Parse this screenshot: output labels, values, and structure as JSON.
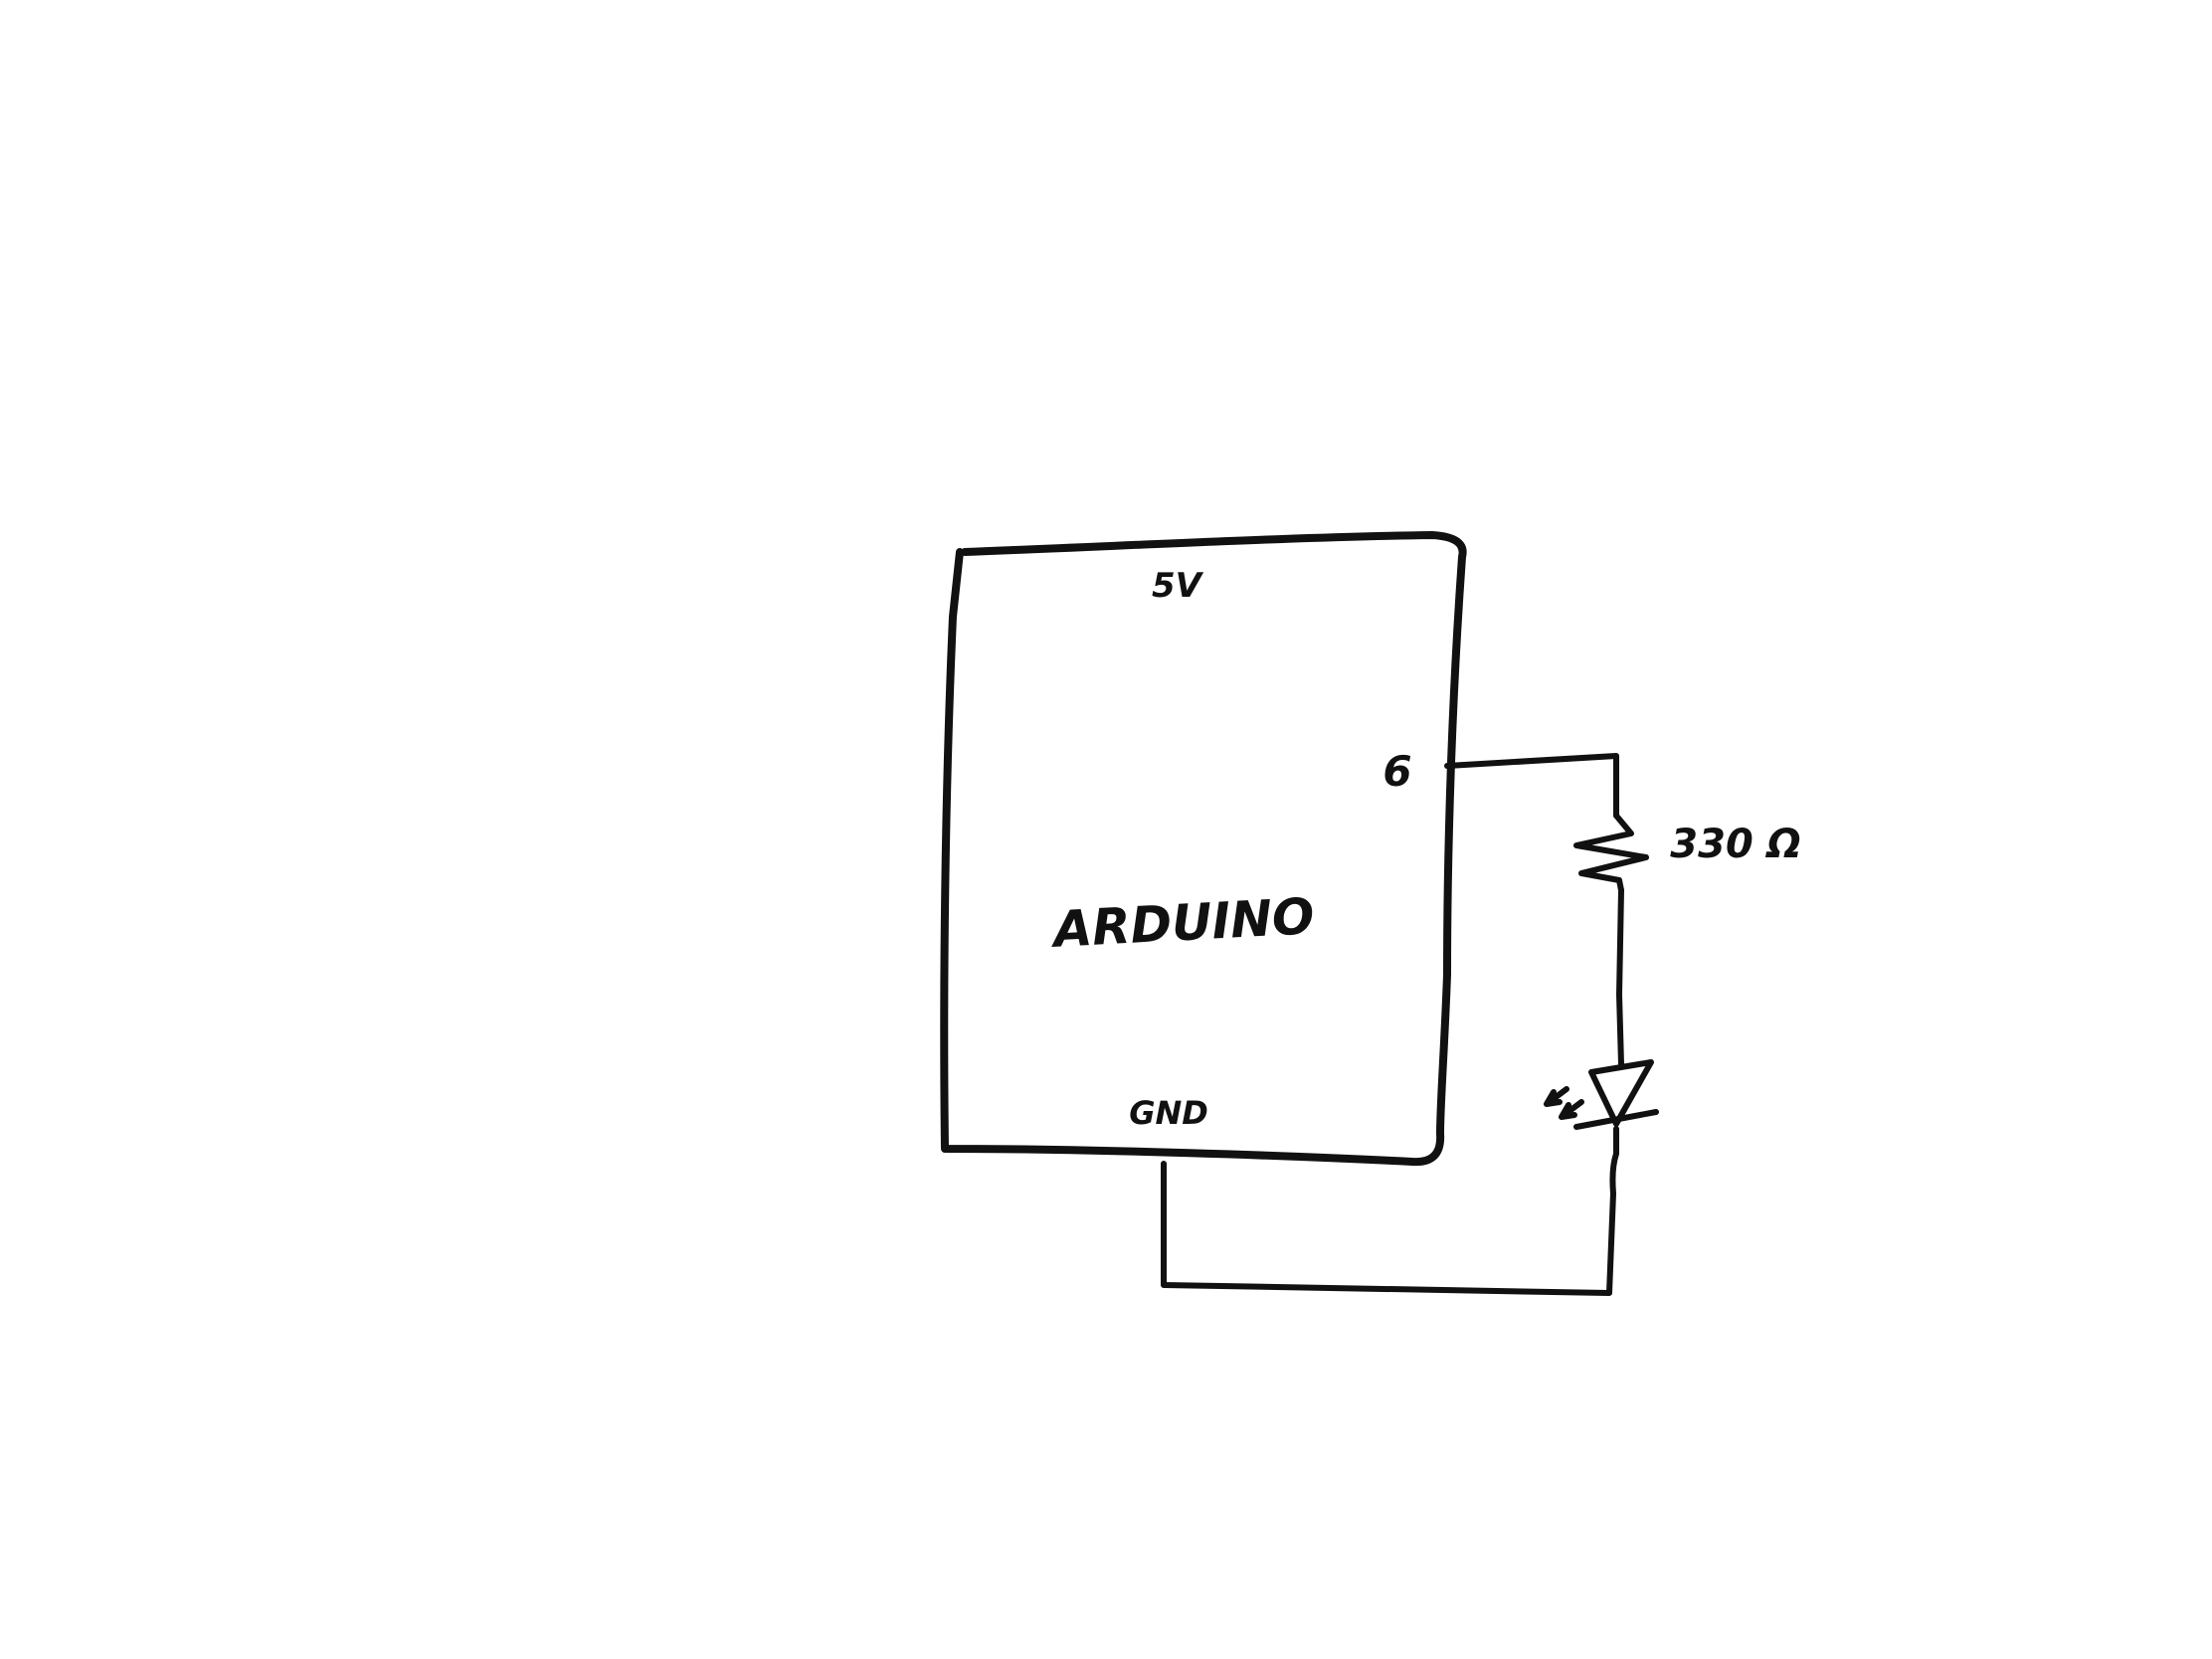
{
  "diagram": {
    "board_label": "ARDUINO",
    "pins": {
      "top": "5V",
      "right": "6",
      "bottom": "GND"
    },
    "resistor": {
      "value_label": "330 Ω"
    },
    "led": {
      "icon": "led-icon"
    },
    "colors": {
      "ink": "#111111",
      "background": "#ffffff"
    }
  }
}
